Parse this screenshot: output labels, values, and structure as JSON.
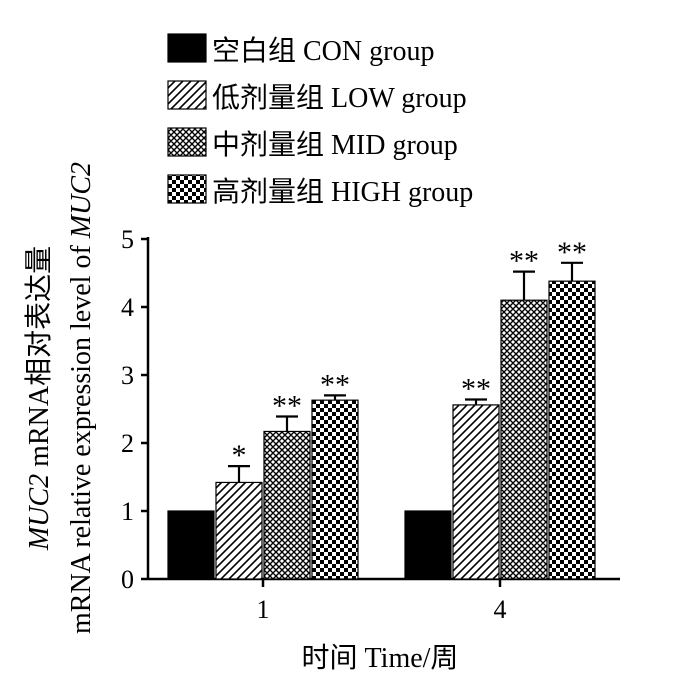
{
  "chart_data": {
    "type": "bar",
    "title": "",
    "xlabel": "时间 Time/周",
    "ylabel_line1_italic": "MUC2",
    "ylabel_line1_rest": " mRNA相对表达量",
    "ylabel_line2_rest": "mRNA relative expression level of ",
    "ylabel_line2_italic": "MUC2",
    "categories": [
      "1",
      "4"
    ],
    "yticks": [
      "0",
      "1",
      "2",
      "3",
      "4",
      "5"
    ],
    "ylim": [
      0,
      5
    ],
    "grid": false,
    "legend_position": "top",
    "series": [
      {
        "name": "空白组 CON group",
        "pattern": "solid",
        "values": [
          1.0,
          1.0
        ],
        "errors": [
          0,
          0
        ],
        "marks": [
          "",
          ""
        ]
      },
      {
        "name": "低剂量组 LOW group",
        "pattern": "diagonal",
        "values": [
          1.42,
          2.56
        ],
        "errors": [
          0.24,
          0.08
        ],
        "marks": [
          "*",
          "**"
        ]
      },
      {
        "name": "中剂量组  MID group",
        "pattern": "crosshatch",
        "values": [
          2.17,
          4.1
        ],
        "errors": [
          0.22,
          0.42
        ],
        "marks": [
          "**",
          "**"
        ]
      },
      {
        "name": "高剂量组 HIGH group",
        "pattern": "checker",
        "values": [
          2.63,
          4.38
        ],
        "errors": [
          0.07,
          0.27
        ],
        "marks": [
          "**",
          "**"
        ]
      }
    ]
  }
}
